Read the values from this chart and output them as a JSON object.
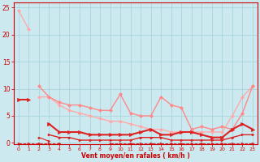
{
  "xlabel": "Vent moyen/en rafales ( km/h )",
  "xlim": [
    -0.5,
    23.5
  ],
  "ylim": [
    -0.3,
    26
  ],
  "yticks": [
    0,
    5,
    10,
    15,
    20,
    25
  ],
  "xticks": [
    0,
    1,
    2,
    3,
    4,
    5,
    6,
    7,
    8,
    9,
    10,
    11,
    12,
    13,
    14,
    15,
    16,
    17,
    18,
    19,
    20,
    21,
    22,
    23
  ],
  "bg_color": "#cce9f0",
  "grid_color": "#aad4dc",
  "series": [
    {
      "x": [
        0,
        1
      ],
      "y": [
        24.5,
        21
      ],
      "color": "#ffaaaa",
      "marker": "D",
      "markersize": 2,
      "linewidth": 1.0,
      "linestyle": "-"
    },
    {
      "x": [
        2,
        3,
        4,
        5,
        6,
        7,
        8,
        9,
        10,
        11,
        12,
        13,
        14,
        15,
        16,
        17,
        18,
        19,
        20,
        21,
        22,
        23
      ],
      "y": [
        8.5,
        8.5,
        7.0,
        6.0,
        5.5,
        5.0,
        4.5,
        4.0,
        4.0,
        3.5,
        3.0,
        2.5,
        2.5,
        2.0,
        2.0,
        2.0,
        2.0,
        2.0,
        2.0,
        5.0,
        8.5,
        10.5
      ],
      "color": "#ffaaaa",
      "marker": "D",
      "markersize": 2,
      "linewidth": 1.0,
      "linestyle": "-"
    },
    {
      "x": [
        2,
        3,
        4,
        5,
        6,
        7,
        8,
        9,
        10,
        11,
        12,
        13,
        14,
        15,
        16,
        17,
        18,
        19,
        20,
        21,
        22,
        23
      ],
      "y": [
        10.5,
        8.5,
        7.5,
        7.0,
        7.0,
        6.5,
        6.0,
        6.0,
        9.0,
        5.5,
        5.0,
        5.0,
        8.5,
        7.0,
        6.5,
        2.5,
        3.0,
        2.5,
        3.0,
        2.5,
        5.5,
        10.5
      ],
      "color": "#ff8888",
      "marker": "D",
      "markersize": 2,
      "linewidth": 1.0,
      "linestyle": "-"
    },
    {
      "x": [
        0,
        1
      ],
      "y": [
        8.0,
        8.0
      ],
      "color": "#dd2222",
      "marker": ">",
      "markersize": 3,
      "linewidth": 1.5,
      "linestyle": "-"
    },
    {
      "x": [
        3,
        4,
        5,
        6,
        7,
        8,
        9,
        10,
        11,
        12,
        13,
        14,
        15,
        16,
        17,
        18,
        19,
        20,
        21,
        22,
        23
      ],
      "y": [
        3.5,
        2.0,
        2.0,
        2.0,
        1.5,
        1.5,
        1.5,
        1.5,
        1.5,
        2.0,
        2.5,
        1.5,
        1.5,
        2.0,
        2.0,
        1.5,
        1.0,
        1.0,
        2.5,
        3.5,
        2.5
      ],
      "color": "#dd2222",
      "marker": ">",
      "markersize": 3,
      "linewidth": 1.5,
      "linestyle": "-"
    },
    {
      "x": [
        3,
        4,
        5,
        6,
        7,
        8,
        9,
        10,
        11,
        12,
        13,
        14,
        15,
        16,
        17,
        18,
        19,
        20,
        21,
        22,
        23
      ],
      "y": [
        1.5,
        1.0,
        1.0,
        0.5,
        0.5,
        0.5,
        0.5,
        0.5,
        0.5,
        1.0,
        1.0,
        1.0,
        0.5,
        0.5,
        0.5,
        0.5,
        0.5,
        0.5,
        1.0,
        1.5,
        1.5
      ],
      "color": "#dd2222",
      "marker": ">",
      "markersize": 2,
      "linewidth": 1.0,
      "linestyle": "-"
    },
    {
      "x": [
        2,
        3
      ],
      "y": [
        1.0,
        0.3
      ],
      "color": "#dd2222",
      "marker": ">",
      "markersize": 2,
      "linewidth": 0.8,
      "linestyle": "-"
    },
    {
      "x": [
        0,
        1,
        2,
        3,
        4
      ],
      "y": [
        -0.1,
        -0.1,
        -0.1,
        -0.1,
        -0.1
      ],
      "color": "#dd2222",
      "marker": ">",
      "markersize": 2,
      "linewidth": 0.7,
      "linestyle": "--"
    },
    {
      "x": [
        9,
        10,
        11,
        12,
        13,
        14,
        15,
        16,
        17,
        18,
        19,
        20,
        21,
        22,
        23
      ],
      "y": [
        -0.1,
        -0.1,
        -0.1,
        -0.1,
        -0.1,
        -0.1,
        -0.1,
        -0.1,
        -0.1,
        -0.1,
        -0.1,
        -0.1,
        -0.1,
        -0.1,
        -0.1
      ],
      "color": "#dd2222",
      "marker": ">",
      "markersize": 2,
      "linewidth": 0.7,
      "linestyle": "--"
    }
  ]
}
